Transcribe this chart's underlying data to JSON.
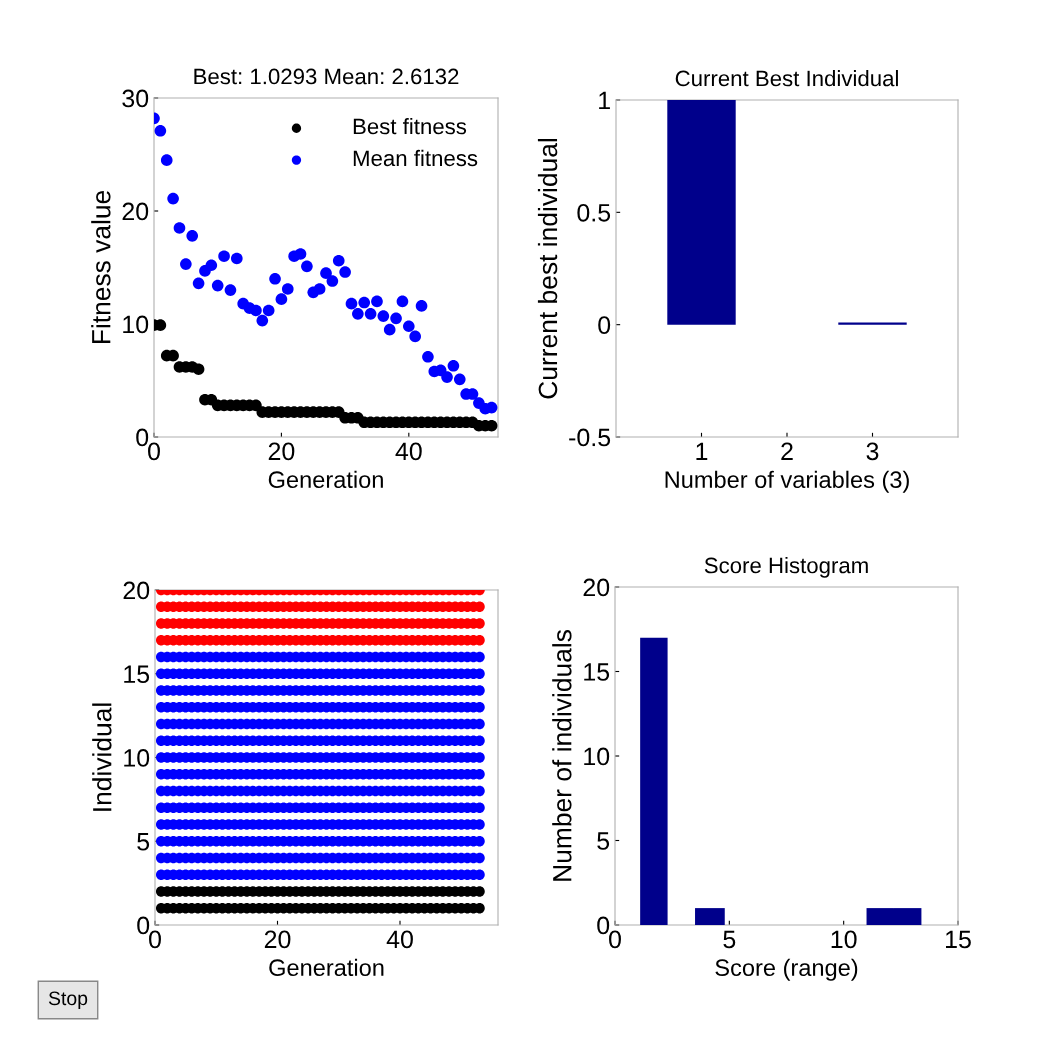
{
  "chart_data": [
    {
      "type": "scatter",
      "title": "Best: 1.0293 Mean: 2.6132",
      "xlabel": "Generation",
      "ylabel": "Fitness value",
      "x": [
        0,
        1,
        2,
        3,
        4,
        5,
        6,
        7,
        8,
        9,
        10,
        11,
        12,
        13,
        14,
        15,
        16,
        17,
        18,
        19,
        20,
        21,
        22,
        23,
        24,
        25,
        26,
        27,
        28,
        29,
        30,
        31,
        32,
        33,
        34,
        35,
        36,
        37,
        38,
        39,
        40,
        41,
        42,
        43,
        44,
        45,
        46,
        47,
        48,
        49,
        50,
        51,
        52,
        53
      ],
      "xlim": [
        0,
        54
      ],
      "xticks": [
        0,
        20,
        40
      ],
      "ylim": [
        0,
        30
      ],
      "yticks": [
        0,
        10,
        20,
        30
      ],
      "legend": "top right",
      "marker": "circle",
      "series": [
        {
          "name": "Best fitness",
          "color": "#000000",
          "values": [
            9.9,
            9.9,
            7.2,
            7.2,
            6.2,
            6.2,
            6.2,
            6.0,
            3.3,
            3.3,
            2.8,
            2.8,
            2.8,
            2.8,
            2.8,
            2.8,
            2.8,
            2.2,
            2.2,
            2.2,
            2.2,
            2.2,
            2.2,
            2.2,
            2.2,
            2.2,
            2.2,
            2.2,
            2.2,
            2.2,
            1.7,
            1.7,
            1.7,
            1.3,
            1.3,
            1.3,
            1.3,
            1.3,
            1.3,
            1.3,
            1.3,
            1.3,
            1.3,
            1.3,
            1.3,
            1.3,
            1.3,
            1.3,
            1.3,
            1.3,
            1.3,
            1.0,
            1.0,
            1.0
          ]
        },
        {
          "name": "Mean fitness",
          "color": "#0000ff",
          "values": [
            28.2,
            27.1,
            24.5,
            21.1,
            18.5,
            15.3,
            17.8,
            13.6,
            14.7,
            15.2,
            13.4,
            16.0,
            13.0,
            15.8,
            11.8,
            11.4,
            11.2,
            10.3,
            11.2,
            14.0,
            12.2,
            13.1,
            16.0,
            16.2,
            15.1,
            12.8,
            13.1,
            14.5,
            13.8,
            15.6,
            14.6,
            11.8,
            10.9,
            11.9,
            10.9,
            12.0,
            10.7,
            9.5,
            10.5,
            12.0,
            9.8,
            8.9,
            11.6,
            7.1,
            5.8,
            5.9,
            5.3,
            6.3,
            5.1,
            3.8,
            3.8,
            3.0,
            2.5,
            2.6
          ]
        }
      ]
    },
    {
      "type": "bar",
      "title": "Current Best Individual",
      "xlabel": "Number of variables (3)",
      "ylabel": "Current best individual",
      "x": [
        1,
        2,
        3
      ],
      "values": [
        1,
        0,
        0.01
      ],
      "color": "#00008b",
      "xlim": [
        0,
        4
      ],
      "xticks": [
        1,
        2,
        3
      ],
      "ylim": [
        -0.5,
        1
      ],
      "yticks": [
        -0.5,
        0,
        0.5,
        1
      ]
    },
    {
      "type": "scatter",
      "xlabel": "Generation",
      "ylabel": "Individual",
      "x": [
        1,
        2,
        3,
        4,
        5,
        6,
        7,
        8,
        9,
        10,
        11,
        12,
        13,
        14,
        15,
        16,
        17,
        18,
        19,
        20,
        21,
        22,
        23,
        24,
        25,
        26,
        27,
        28,
        29,
        30,
        31,
        32,
        33,
        34,
        35,
        36,
        37,
        38,
        39,
        40,
        41,
        42,
        43,
        44,
        45,
        46,
        47,
        48,
        49,
        50,
        51,
        52,
        53
      ],
      "xlim": [
        0,
        56
      ],
      "xticks": [
        0,
        20,
        40
      ],
      "ylim": [
        0,
        20
      ],
      "yticks": [
        0,
        5,
        10,
        15,
        20
      ],
      "marker": "circle",
      "annotations": [
        "Stop"
      ],
      "series": [
        {
          "color": "#000000",
          "values": [
            1,
            1,
            1,
            1,
            1,
            1,
            1,
            1,
            1,
            1,
            1,
            1,
            1,
            1,
            1,
            1,
            1,
            1,
            1,
            1,
            1,
            1,
            1,
            1,
            1,
            1,
            1,
            1,
            1,
            1,
            1,
            1,
            1,
            1,
            1,
            1,
            1,
            1,
            1,
            1,
            1,
            1,
            1,
            1,
            1,
            1,
            1,
            1,
            1,
            1,
            1,
            1,
            1
          ]
        },
        {
          "color": "#000000",
          "values": [
            2,
            2,
            2,
            2,
            2,
            2,
            2,
            2,
            2,
            2,
            2,
            2,
            2,
            2,
            2,
            2,
            2,
            2,
            2,
            2,
            2,
            2,
            2,
            2,
            2,
            2,
            2,
            2,
            2,
            2,
            2,
            2,
            2,
            2,
            2,
            2,
            2,
            2,
            2,
            2,
            2,
            2,
            2,
            2,
            2,
            2,
            2,
            2,
            2,
            2,
            2,
            2,
            2
          ]
        },
        {
          "color": "#0000ff",
          "values": [
            3,
            3,
            3,
            3,
            3,
            3,
            3,
            3,
            3,
            3,
            3,
            3,
            3,
            3,
            3,
            3,
            3,
            3,
            3,
            3,
            3,
            3,
            3,
            3,
            3,
            3,
            3,
            3,
            3,
            3,
            3,
            3,
            3,
            3,
            3,
            3,
            3,
            3,
            3,
            3,
            3,
            3,
            3,
            3,
            3,
            3,
            3,
            3,
            3,
            3,
            3,
            3,
            3
          ]
        },
        {
          "color": "#0000ff",
          "values": [
            4,
            4,
            4,
            4,
            4,
            4,
            4,
            4,
            4,
            4,
            4,
            4,
            4,
            4,
            4,
            4,
            4,
            4,
            4,
            4,
            4,
            4,
            4,
            4,
            4,
            4,
            4,
            4,
            4,
            4,
            4,
            4,
            4,
            4,
            4,
            4,
            4,
            4,
            4,
            4,
            4,
            4,
            4,
            4,
            4,
            4,
            4,
            4,
            4,
            4,
            4,
            4,
            4
          ]
        },
        {
          "color": "#0000ff",
          "values": [
            5,
            5,
            5,
            5,
            5,
            5,
            5,
            5,
            5,
            5,
            5,
            5,
            5,
            5,
            5,
            5,
            5,
            5,
            5,
            5,
            5,
            5,
            5,
            5,
            5,
            5,
            5,
            5,
            5,
            5,
            5,
            5,
            5,
            5,
            5,
            5,
            5,
            5,
            5,
            5,
            5,
            5,
            5,
            5,
            5,
            5,
            5,
            5,
            5,
            5,
            5,
            5,
            5
          ]
        },
        {
          "color": "#0000ff",
          "values": [
            6,
            6,
            6,
            6,
            6,
            6,
            6,
            6,
            6,
            6,
            6,
            6,
            6,
            6,
            6,
            6,
            6,
            6,
            6,
            6,
            6,
            6,
            6,
            6,
            6,
            6,
            6,
            6,
            6,
            6,
            6,
            6,
            6,
            6,
            6,
            6,
            6,
            6,
            6,
            6,
            6,
            6,
            6,
            6,
            6,
            6,
            6,
            6,
            6,
            6,
            6,
            6,
            6
          ]
        },
        {
          "color": "#0000ff",
          "values": [
            7,
            7,
            7,
            7,
            7,
            7,
            7,
            7,
            7,
            7,
            7,
            7,
            7,
            7,
            7,
            7,
            7,
            7,
            7,
            7,
            7,
            7,
            7,
            7,
            7,
            7,
            7,
            7,
            7,
            7,
            7,
            7,
            7,
            7,
            7,
            7,
            7,
            7,
            7,
            7,
            7,
            7,
            7,
            7,
            7,
            7,
            7,
            7,
            7,
            7,
            7,
            7,
            7
          ]
        },
        {
          "color": "#0000ff",
          "values": [
            8,
            8,
            8,
            8,
            8,
            8,
            8,
            8,
            8,
            8,
            8,
            8,
            8,
            8,
            8,
            8,
            8,
            8,
            8,
            8,
            8,
            8,
            8,
            8,
            8,
            8,
            8,
            8,
            8,
            8,
            8,
            8,
            8,
            8,
            8,
            8,
            8,
            8,
            8,
            8,
            8,
            8,
            8,
            8,
            8,
            8,
            8,
            8,
            8,
            8,
            8,
            8,
            8
          ]
        },
        {
          "color": "#0000ff",
          "values": [
            9,
            9,
            9,
            9,
            9,
            9,
            9,
            9,
            9,
            9,
            9,
            9,
            9,
            9,
            9,
            9,
            9,
            9,
            9,
            9,
            9,
            9,
            9,
            9,
            9,
            9,
            9,
            9,
            9,
            9,
            9,
            9,
            9,
            9,
            9,
            9,
            9,
            9,
            9,
            9,
            9,
            9,
            9,
            9,
            9,
            9,
            9,
            9,
            9,
            9,
            9,
            9,
            9
          ]
        },
        {
          "color": "#0000ff",
          "values": [
            10,
            10,
            10,
            10,
            10,
            10,
            10,
            10,
            10,
            10,
            10,
            10,
            10,
            10,
            10,
            10,
            10,
            10,
            10,
            10,
            10,
            10,
            10,
            10,
            10,
            10,
            10,
            10,
            10,
            10,
            10,
            10,
            10,
            10,
            10,
            10,
            10,
            10,
            10,
            10,
            10,
            10,
            10,
            10,
            10,
            10,
            10,
            10,
            10,
            10,
            10,
            10,
            10
          ]
        },
        {
          "color": "#0000ff",
          "values": [
            11,
            11,
            11,
            11,
            11,
            11,
            11,
            11,
            11,
            11,
            11,
            11,
            11,
            11,
            11,
            11,
            11,
            11,
            11,
            11,
            11,
            11,
            11,
            11,
            11,
            11,
            11,
            11,
            11,
            11,
            11,
            11,
            11,
            11,
            11,
            11,
            11,
            11,
            11,
            11,
            11,
            11,
            11,
            11,
            11,
            11,
            11,
            11,
            11,
            11,
            11,
            11,
            11
          ]
        },
        {
          "color": "#0000ff",
          "values": [
            12,
            12,
            12,
            12,
            12,
            12,
            12,
            12,
            12,
            12,
            12,
            12,
            12,
            12,
            12,
            12,
            12,
            12,
            12,
            12,
            12,
            12,
            12,
            12,
            12,
            12,
            12,
            12,
            12,
            12,
            12,
            12,
            12,
            12,
            12,
            12,
            12,
            12,
            12,
            12,
            12,
            12,
            12,
            12,
            12,
            12,
            12,
            12,
            12,
            12,
            12,
            12,
            12
          ]
        },
        {
          "color": "#0000ff",
          "values": [
            13,
            13,
            13,
            13,
            13,
            13,
            13,
            13,
            13,
            13,
            13,
            13,
            13,
            13,
            13,
            13,
            13,
            13,
            13,
            13,
            13,
            13,
            13,
            13,
            13,
            13,
            13,
            13,
            13,
            13,
            13,
            13,
            13,
            13,
            13,
            13,
            13,
            13,
            13,
            13,
            13,
            13,
            13,
            13,
            13,
            13,
            13,
            13,
            13,
            13,
            13,
            13,
            13
          ]
        },
        {
          "color": "#0000ff",
          "values": [
            14,
            14,
            14,
            14,
            14,
            14,
            14,
            14,
            14,
            14,
            14,
            14,
            14,
            14,
            14,
            14,
            14,
            14,
            14,
            14,
            14,
            14,
            14,
            14,
            14,
            14,
            14,
            14,
            14,
            14,
            14,
            14,
            14,
            14,
            14,
            14,
            14,
            14,
            14,
            14,
            14,
            14,
            14,
            14,
            14,
            14,
            14,
            14,
            14,
            14,
            14,
            14,
            14
          ]
        },
        {
          "color": "#0000ff",
          "values": [
            15,
            15,
            15,
            15,
            15,
            15,
            15,
            15,
            15,
            15,
            15,
            15,
            15,
            15,
            15,
            15,
            15,
            15,
            15,
            15,
            15,
            15,
            15,
            15,
            15,
            15,
            15,
            15,
            15,
            15,
            15,
            15,
            15,
            15,
            15,
            15,
            15,
            15,
            15,
            15,
            15,
            15,
            15,
            15,
            15,
            15,
            15,
            15,
            15,
            15,
            15,
            15,
            15
          ]
        },
        {
          "color": "#0000ff",
          "values": [
            16,
            16,
            16,
            16,
            16,
            16,
            16,
            16,
            16,
            16,
            16,
            16,
            16,
            16,
            16,
            16,
            16,
            16,
            16,
            16,
            16,
            16,
            16,
            16,
            16,
            16,
            16,
            16,
            16,
            16,
            16,
            16,
            16,
            16,
            16,
            16,
            16,
            16,
            16,
            16,
            16,
            16,
            16,
            16,
            16,
            16,
            16,
            16,
            16,
            16,
            16,
            16,
            16
          ]
        },
        {
          "color": "#ff0000",
          "values": [
            17,
            17,
            17,
            17,
            17,
            17,
            17,
            17,
            17,
            17,
            17,
            17,
            17,
            17,
            17,
            17,
            17,
            17,
            17,
            17,
            17,
            17,
            17,
            17,
            17,
            17,
            17,
            17,
            17,
            17,
            17,
            17,
            17,
            17,
            17,
            17,
            17,
            17,
            17,
            17,
            17,
            17,
            17,
            17,
            17,
            17,
            17,
            17,
            17,
            17,
            17,
            17,
            17
          ]
        },
        {
          "color": "#ff0000",
          "values": [
            18,
            18,
            18,
            18,
            18,
            18,
            18,
            18,
            18,
            18,
            18,
            18,
            18,
            18,
            18,
            18,
            18,
            18,
            18,
            18,
            18,
            18,
            18,
            18,
            18,
            18,
            18,
            18,
            18,
            18,
            18,
            18,
            18,
            18,
            18,
            18,
            18,
            18,
            18,
            18,
            18,
            18,
            18,
            18,
            18,
            18,
            18,
            18,
            18,
            18,
            18,
            18,
            18
          ]
        },
        {
          "color": "#ff0000",
          "values": [
            19,
            19,
            19,
            19,
            19,
            19,
            19,
            19,
            19,
            19,
            19,
            19,
            19,
            19,
            19,
            19,
            19,
            19,
            19,
            19,
            19,
            19,
            19,
            19,
            19,
            19,
            19,
            19,
            19,
            19,
            19,
            19,
            19,
            19,
            19,
            19,
            19,
            19,
            19,
            19,
            19,
            19,
            19,
            19,
            19,
            19,
            19,
            19,
            19,
            19,
            19,
            19,
            19
          ]
        },
        {
          "color": "#ff0000",
          "values": [
            20,
            20,
            20,
            20,
            20,
            20,
            20,
            20,
            20,
            20,
            20,
            20,
            20,
            20,
            20,
            20,
            20,
            20,
            20,
            20,
            20,
            20,
            20,
            20,
            20,
            20,
            20,
            20,
            20,
            20,
            20,
            20,
            20,
            20,
            20,
            20,
            20,
            20,
            20,
            20,
            20,
            20,
            20,
            20,
            20,
            20,
            20,
            20,
            20,
            20,
            20,
            20,
            20
          ]
        }
      ]
    },
    {
      "type": "histogram",
      "title": "Score Histogram",
      "xlabel": "Score (range)",
      "ylabel": "Number of individuals",
      "bins": [
        1.1,
        2.3,
        3.5,
        4.8,
        11.0,
        12.2,
        13.4
      ],
      "values": [
        17,
        0,
        1,
        0,
        1,
        1
      ],
      "color": "#00008b",
      "xlim": [
        0,
        15
      ],
      "xticks": [
        0,
        5,
        10,
        15
      ],
      "ylim": [
        0,
        20
      ],
      "yticks": [
        0,
        5,
        10,
        15,
        20
      ]
    }
  ]
}
